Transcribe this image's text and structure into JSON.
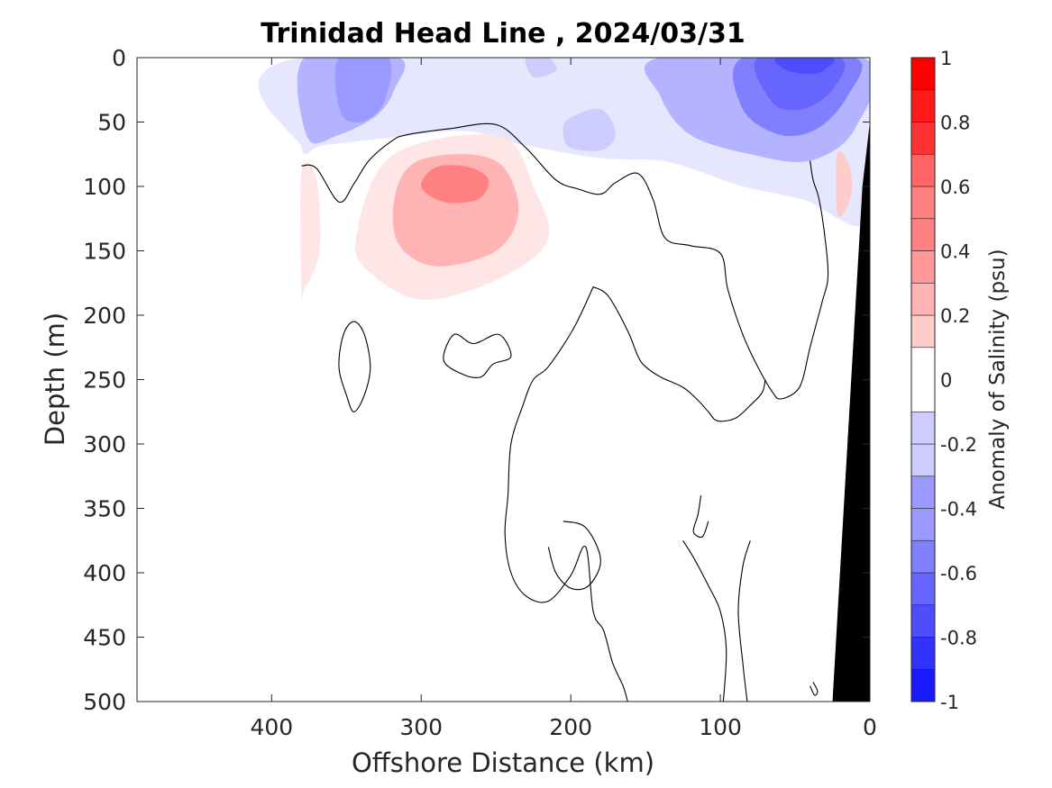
{
  "chart_data": {
    "type": "contour",
    "title": "Trinidad Head Line , 2024/03/31",
    "xlabel": "Offshore Distance (km)",
    "ylabel": "Depth (m)",
    "xlim": [
      490,
      0
    ],
    "ylim": [
      0,
      500
    ],
    "x_reversed": true,
    "y_reversed": true,
    "xticks": [
      400,
      300,
      200,
      100,
      0
    ],
    "yticks": [
      0,
      50,
      100,
      150,
      200,
      250,
      300,
      350,
      400,
      450,
      500
    ],
    "colorbar": {
      "label": "Anomaly of Salinity (psu)",
      "limits": [
        -1,
        1
      ],
      "ticks": [
        1,
        0.8,
        0.6,
        0.4,
        0.2,
        0,
        -0.2,
        -0.4,
        -0.6,
        -0.8,
        -1
      ],
      "tick_labels": [
        "1",
        "0.8",
        "0.6",
        "0.4",
        "0.2",
        "0",
        "-0.2",
        "-0.4",
        "-0.6",
        "-0.8",
        "-1"
      ],
      "levels": [
        -1,
        -0.9,
        -0.8,
        -0.7,
        -0.6,
        -0.5,
        -0.4,
        -0.3,
        -0.2,
        -0.1,
        0.1,
        0.2,
        0.3,
        0.4,
        0.5,
        0.6,
        0.7,
        0.8,
        0.9,
        1
      ]
    },
    "regions": [
      {
        "name": "fresh-band-upper",
        "anomaly": -0.1,
        "points": [
          [
            380,
            0
          ],
          [
            0,
            0
          ],
          [
            0,
            125
          ],
          [
            45,
            110
          ],
          [
            85,
            100
          ],
          [
            110,
            90
          ],
          [
            140,
            80
          ],
          [
            180,
            78
          ],
          [
            230,
            68
          ],
          [
            270,
            57
          ],
          [
            320,
            62
          ],
          [
            365,
            68
          ],
          [
            380,
            70
          ]
        ]
      },
      {
        "name": "fresh-core-offshore",
        "anomaly": -0.3,
        "points": [
          [
            378,
            0
          ],
          [
            315,
            0
          ],
          [
            318,
            25
          ],
          [
            330,
            45
          ],
          [
            355,
            60
          ],
          [
            376,
            62
          ]
        ]
      },
      {
        "name": "fresh-core-offshore-inner",
        "anomaly": -0.4,
        "points": [
          [
            355,
            0
          ],
          [
            322,
            0
          ],
          [
            325,
            35
          ],
          [
            340,
            50
          ],
          [
            354,
            42
          ]
        ]
      },
      {
        "name": "fresh-pocket-mid",
        "anomaly": -0.2,
        "points": [
          [
            202,
            48
          ],
          [
            180,
            40
          ],
          [
            170,
            60
          ],
          [
            180,
            72
          ],
          [
            200,
            70
          ],
          [
            205,
            60
          ]
        ]
      },
      {
        "name": "fresh-patch-mid-surface",
        "anomaly": -0.2,
        "points": [
          [
            230,
            0
          ],
          [
            215,
            0
          ],
          [
            210,
            10
          ],
          [
            225,
            15
          ]
        ]
      },
      {
        "name": "fresh-core-nearshore",
        "anomaly": -0.3,
        "points": [
          [
            140,
            0
          ],
          [
            5,
            0
          ],
          [
            10,
            55
          ],
          [
            40,
            80
          ],
          [
            80,
            75
          ],
          [
            120,
            60
          ],
          [
            140,
            30
          ]
        ]
      },
      {
        "name": "fresh-core-nearshore-inner",
        "anomaly": -0.5,
        "points": [
          [
            85,
            0
          ],
          [
            10,
            0
          ],
          [
            15,
            30
          ],
          [
            35,
            55
          ],
          [
            60,
            60
          ],
          [
            85,
            40
          ]
        ]
      },
      {
        "name": "fresh-core-nearshore-deep",
        "anomaly": -0.6,
        "points": [
          [
            75,
            0
          ],
          [
            20,
            0
          ],
          [
            25,
            25
          ],
          [
            45,
            40
          ],
          [
            65,
            35
          ]
        ]
      },
      {
        "name": "fresh-core-nearshore-max",
        "anomaly": -0.7,
        "points": [
          [
            62,
            0
          ],
          [
            25,
            0
          ],
          [
            35,
            12
          ],
          [
            55,
            10
          ]
        ]
      },
      {
        "name": "salty-plume",
        "anomaly": 0.1,
        "points": [
          [
            300,
            188
          ],
          [
            245,
            170
          ],
          [
            215,
            140
          ],
          [
            225,
            100
          ],
          [
            240,
            65
          ],
          [
            270,
            60
          ],
          [
            310,
            70
          ],
          [
            330,
            90
          ],
          [
            342,
            130
          ],
          [
            340,
            160
          ]
        ]
      },
      {
        "name": "salty-plume-inner",
        "anomaly": 0.3,
        "points": [
          [
            290,
            162
          ],
          [
            250,
            150
          ],
          [
            235,
            120
          ],
          [
            245,
            85
          ],
          [
            270,
            75
          ],
          [
            305,
            82
          ],
          [
            318,
            110
          ],
          [
            315,
            145
          ]
        ]
      },
      {
        "name": "salty-plume-core",
        "anomaly": 0.5,
        "points": [
          [
            285,
            112
          ],
          [
            262,
            110
          ],
          [
            255,
            95
          ],
          [
            268,
            85
          ],
          [
            290,
            85
          ],
          [
            300,
            100
          ]
        ]
      },
      {
        "name": "salty-patch-offshore",
        "anomaly": 0.1,
        "points": [
          [
            380,
            88
          ],
          [
            370,
            95
          ],
          [
            368,
            150
          ],
          [
            378,
            180
          ],
          [
            380,
            180
          ]
        ]
      },
      {
        "name": "salty-patch-nearshore",
        "anomaly": 0.2,
        "points": [
          [
            22,
            75
          ],
          [
            15,
            80
          ],
          [
            12,
            100
          ],
          [
            16,
            118
          ],
          [
            22,
            120
          ]
        ]
      }
    ],
    "zero_contours": [
      [
        [
          380,
          84
        ],
        [
          370,
          86
        ],
        [
          355,
          112
        ],
        [
          345,
          98
        ],
        [
          335,
          80
        ],
        [
          320,
          65
        ],
        [
          310,
          60
        ],
        [
          280,
          55
        ],
        [
          250,
          52
        ],
        [
          230,
          70
        ],
        [
          210,
          95
        ],
        [
          195,
          102
        ],
        [
          180,
          106
        ],
        [
          170,
          97
        ],
        [
          155,
          90
        ],
        [
          145,
          110
        ],
        [
          137,
          140
        ],
        [
          120,
          146
        ],
        [
          100,
          152
        ],
        [
          95,
          180
        ],
        [
          85,
          215
        ],
        [
          75,
          240
        ],
        [
          65,
          260
        ],
        [
          60,
          265
        ],
        [
          50,
          260
        ],
        [
          45,
          250
        ],
        [
          40,
          225
        ],
        [
          32,
          190
        ],
        [
          28,
          170
        ],
        [
          30,
          140
        ],
        [
          34,
          110
        ],
        [
          38,
          95
        ],
        [
          40,
          80
        ]
      ],
      [
        [
          185,
          178
        ],
        [
          175,
          185
        ],
        [
          162,
          212
        ],
        [
          155,
          232
        ],
        [
          150,
          240
        ],
        [
          140,
          248
        ],
        [
          125,
          256
        ],
        [
          115,
          266
        ],
        [
          108,
          275
        ],
        [
          102,
          282
        ],
        [
          90,
          280
        ],
        [
          80,
          270
        ],
        [
          72,
          260
        ],
        [
          70,
          250
        ]
      ],
      [
        [
          185,
          178
        ],
        [
          198,
          210
        ],
        [
          215,
          240
        ],
        [
          225,
          250
        ],
        [
          232,
          270
        ],
        [
          240,
          300
        ],
        [
          242,
          340
        ],
        [
          244,
          370
        ],
        [
          240,
          400
        ],
        [
          230,
          418
        ],
        [
          215,
          422
        ],
        [
          200,
          402
        ],
        [
          190,
          380
        ],
        [
          185,
          430
        ],
        [
          178,
          445
        ],
        [
          172,
          470
        ],
        [
          165,
          488
        ],
        [
          162,
          500
        ]
      ],
      [
        [
          252,
          238
        ],
        [
          240,
          232
        ],
        [
          248,
          215
        ],
        [
          265,
          222
        ],
        [
          278,
          215
        ],
        [
          285,
          235
        ],
        [
          272,
          246
        ],
        [
          260,
          248
        ]
      ],
      [
        [
          345,
          205
        ],
        [
          352,
          215
        ],
        [
          355,
          240
        ],
        [
          350,
          262
        ],
        [
          345,
          275
        ],
        [
          338,
          262
        ],
        [
          334,
          240
        ],
        [
          338,
          215
        ]
      ],
      [
        [
          205,
          360
        ],
        [
          190,
          365
        ],
        [
          180,
          390
        ],
        [
          188,
          410
        ],
        [
          200,
          412
        ],
        [
          210,
          400
        ],
        [
          215,
          380
        ]
      ],
      [
        [
          113,
          340
        ],
        [
          115,
          355
        ],
        [
          118,
          368
        ],
        [
          112,
          372
        ],
        [
          108,
          360
        ]
      ],
      [
        [
          125,
          375
        ],
        [
          118,
          388
        ],
        [
          108,
          410
        ],
        [
          100,
          430
        ],
        [
          96,
          460
        ],
        [
          98,
          500
        ]
      ],
      [
        [
          80,
          375
        ],
        [
          85,
          395
        ],
        [
          88,
          430
        ],
        [
          85,
          470
        ],
        [
          82,
          500
        ]
      ],
      [
        [
          40,
          488
        ],
        [
          37,
          495
        ],
        [
          35,
          492
        ],
        [
          38,
          485
        ]
      ]
    ],
    "topography": [
      [
        0,
        0
      ],
      [
        0,
        500
      ],
      [
        25,
        500
      ],
      [
        20,
        400
      ],
      [
        15,
        300
      ],
      [
        10,
        200
      ],
      [
        5,
        100
      ],
      [
        0,
        50
      ]
    ]
  }
}
